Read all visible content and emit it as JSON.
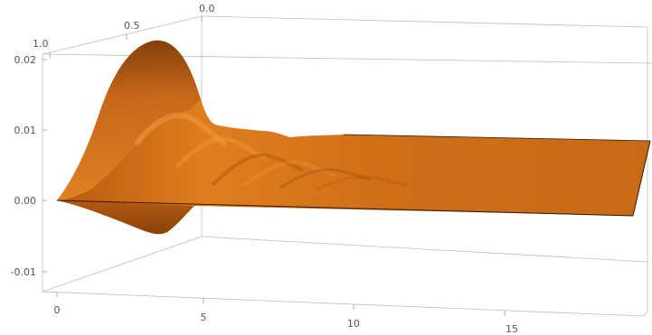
{
  "chart_data": {
    "type": "surface3d",
    "title": "",
    "xlabel": "",
    "ylabel": "",
    "zlabel": "",
    "x_ticks": [
      "0",
      "5",
      "10",
      "15"
    ],
    "x_range": [
      0,
      19
    ],
    "y_ticks": [
      "0.0",
      "0.5",
      "1.0"
    ],
    "y_range": [
      0,
      1
    ],
    "z_ticks": [
      "-0.01",
      "0.00",
      "0.01",
      "0.02"
    ],
    "z_range": [
      -0.0135,
      0.0205
    ],
    "surface_color": "#d9741a",
    "box_color": "#bdbdbd",
    "surface_profile": {
      "description_free": true,
      "front_edge_x": [
        0,
        1,
        2,
        3,
        4,
        5,
        6,
        8,
        10,
        15,
        19
      ],
      "front_edge_z": [
        0,
        0.0002,
        -0.0012,
        -0.0028,
        -0.0033,
        -0.0015,
        -0.0004,
        -0.0001,
        0,
        0,
        0
      ],
      "back_edge_x": [
        0,
        1,
        2,
        3,
        4,
        5,
        6,
        8,
        10,
        15,
        19
      ],
      "back_edge_z": [
        0,
        0.008,
        0.019,
        0.021,
        0.012,
        0.0025,
        -0.0007,
        -0.0003,
        0,
        0,
        0
      ]
    }
  }
}
